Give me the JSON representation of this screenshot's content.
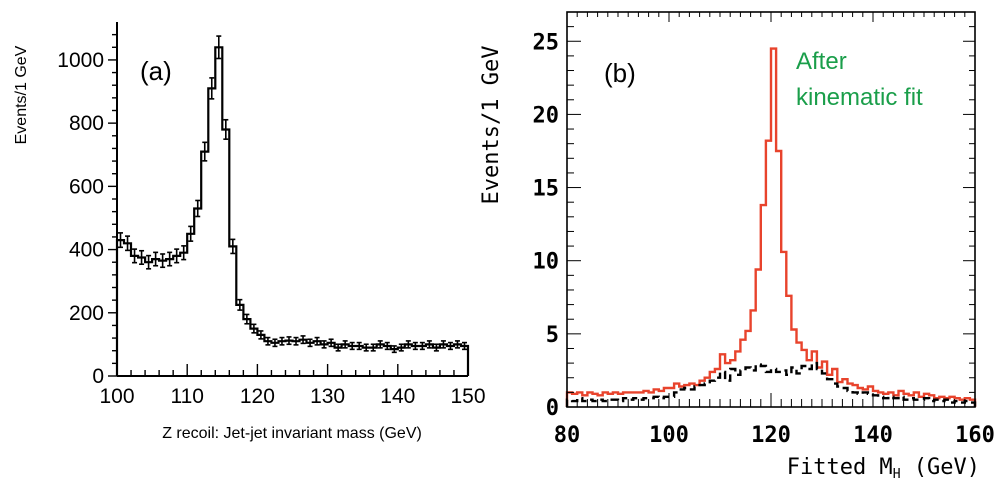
{
  "chart_data": [
    {
      "panel_label": "(a)",
      "type": "histogram",
      "xlabel": "Z recoil: Jet-jet invariant mass (GeV)",
      "ylabel": "Events/1 GeV",
      "xlim": [
        100,
        150
      ],
      "ylim": [
        0,
        1120
      ],
      "xticks": [
        "100",
        "110",
        "120",
        "130",
        "140",
        "150"
      ],
      "yticks": [
        "0",
        "200",
        "400",
        "600",
        "800",
        "1000"
      ],
      "bin_width": 1,
      "x": [
        100,
        101,
        102,
        103,
        104,
        105,
        106,
        107,
        108,
        109,
        110,
        111,
        112,
        113,
        114,
        115,
        116,
        117,
        118,
        119,
        120,
        121,
        122,
        123,
        124,
        125,
        126,
        127,
        128,
        129,
        130,
        131,
        132,
        133,
        134,
        135,
        136,
        137,
        138,
        139,
        140,
        141,
        142,
        143,
        144,
        145,
        146,
        147,
        148,
        149
      ],
      "values": [
        430,
        420,
        380,
        375,
        360,
        370,
        365,
        370,
        380,
        390,
        450,
        530,
        710,
        910,
        1040,
        780,
        410,
        225,
        180,
        150,
        130,
        110,
        105,
        110,
        112,
        110,
        115,
        105,
        110,
        100,
        105,
        90,
        100,
        95,
        95,
        90,
        90,
        100,
        95,
        85,
        90,
        100,
        95,
        95,
        100,
        90,
        100,
        95,
        100,
        95
      ],
      "series": [
        {
          "name": "",
          "style": "black histogram with error bars",
          "color": "#000000"
        }
      ],
      "grid": false
    },
    {
      "panel_label": "(b)",
      "type": "histogram",
      "xlabel": "Fitted M",
      "xlabel_sub": "H",
      "xlabel_unit": " (GeV)",
      "ylabel": "Events/1 GeV",
      "xlim": [
        80,
        160
      ],
      "ylim": [
        0,
        27
      ],
      "xticks": [
        "80",
        "100",
        "120",
        "140",
        "160"
      ],
      "yticks": [
        "0",
        "5",
        "10",
        "15",
        "20",
        "25"
      ],
      "annotation": [
        "After",
        "kinematic fit"
      ],
      "annotation_color": "#1a9e4a",
      "bin_width": 1,
      "x": [
        80,
        81,
        82,
        83,
        84,
        85,
        86,
        87,
        88,
        89,
        90,
        91,
        92,
        93,
        94,
        95,
        96,
        97,
        98,
        99,
        100,
        101,
        102,
        103,
        104,
        105,
        106,
        107,
        108,
        109,
        110,
        111,
        112,
        113,
        114,
        115,
        116,
        117,
        118,
        119,
        120,
        121,
        122,
        123,
        124,
        125,
        126,
        127,
        128,
        129,
        130,
        131,
        132,
        133,
        134,
        135,
        136,
        137,
        138,
        139,
        140,
        141,
        142,
        143,
        144,
        145,
        146,
        147,
        148,
        149,
        150,
        151,
        152,
        153,
        154,
        155,
        156,
        157,
        158,
        159
      ],
      "series": [
        {
          "name": "",
          "color": "#e8432c",
          "style": "solid",
          "values": [
            1.0,
            0.9,
            1.0,
            0.8,
            1.0,
            0.9,
            0.8,
            1.0,
            0.9,
            1.0,
            0.9,
            1.0,
            1.0,
            1.0,
            1.0,
            1.1,
            1.0,
            1.2,
            1.1,
            1.3,
            1.3,
            1.6,
            1.4,
            1.5,
            1.6,
            1.5,
            1.8,
            2.0,
            2.4,
            2.6,
            3.6,
            3.0,
            3.2,
            3.8,
            4.6,
            5.2,
            6.6,
            9.4,
            13.8,
            18.2,
            24.5,
            17.5,
            10.6,
            7.6,
            5.3,
            4.4,
            3.9,
            3.2,
            3.8,
            2.7,
            3.1,
            2.2,
            2.6,
            1.7,
            1.9,
            1.6,
            1.5,
            1.3,
            1.2,
            1.4,
            1.1,
            1.0,
            0.9,
            1.0,
            0.8,
            1.1,
            0.9,
            0.8,
            1.0,
            0.7,
            0.9,
            0.8,
            0.6,
            0.7,
            0.6,
            0.7,
            0.6,
            0.5,
            0.6,
            0.5
          ]
        },
        {
          "name": "",
          "color": "#000000",
          "style": "dashed",
          "values": [
            0.5,
            0.4,
            0.6,
            0.4,
            0.5,
            0.4,
            0.5,
            0.4,
            0.5,
            0.5,
            0.4,
            0.6,
            0.5,
            0.6,
            0.5,
            0.6,
            0.6,
            0.7,
            0.6,
            0.7,
            0.7,
            1.0,
            1.2,
            1.3,
            1.2,
            1.4,
            1.5,
            1.6,
            1.8,
            2.0,
            2.4,
            1.8,
            2.6,
            2.2,
            2.5,
            2.7,
            2.5,
            2.9,
            2.8,
            2.4,
            2.6,
            2.4,
            2.5,
            2.2,
            2.7,
            2.3,
            2.8,
            2.6,
            3.0,
            2.6,
            2.3,
            1.9,
            1.6,
            1.4,
            1.3,
            1.1,
            1.0,
            0.9,
            1.0,
            0.9,
            0.8,
            0.7,
            0.6,
            0.7,
            0.6,
            0.7,
            0.5,
            0.6,
            0.5,
            0.5,
            0.6,
            0.4,
            0.5,
            0.4,
            0.5,
            0.3,
            0.4,
            0.3,
            0.4,
            0.3
          ]
        }
      ],
      "grid": false
    }
  ]
}
